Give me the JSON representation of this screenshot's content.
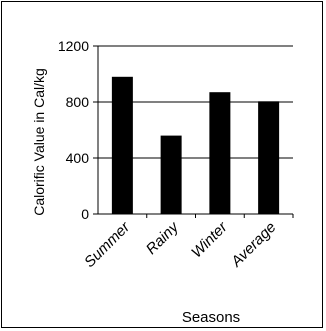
{
  "chart_data": {
    "type": "bar",
    "categories": [
      "Summer",
      "Rainy",
      "Winter",
      "Average"
    ],
    "values": [
      980,
      560,
      870,
      805
    ],
    "xlabel": "Seasons",
    "ylabel": "Calorific Value in Cal/kg",
    "ylim": [
      0,
      1200
    ],
    "yticks": [
      0,
      400,
      800,
      1200
    ],
    "grid": "horizontal",
    "legend": "none",
    "bar_color": "#000000",
    "grid_color": "#000000"
  }
}
